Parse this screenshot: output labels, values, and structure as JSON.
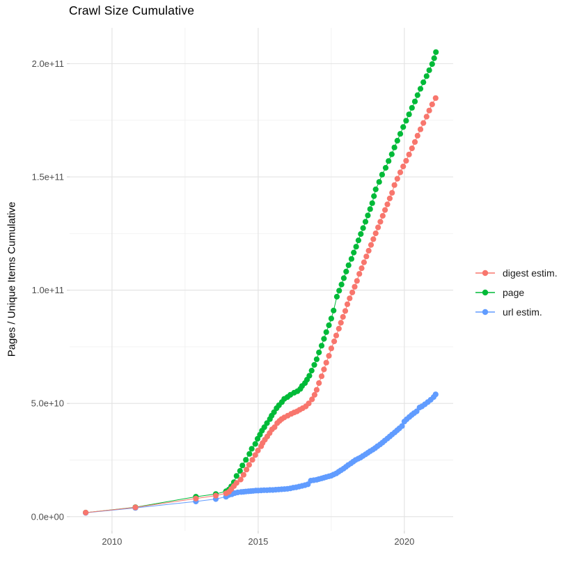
{
  "page": {
    "window_title": "Crawl Size Cumulative"
  },
  "colors": {
    "background": "#ffffff",
    "grid_major": "#e2e2e2",
    "grid_minor": "#ededed",
    "axis_tick": "#d0d0d0",
    "tick_label": "#4d4d4d",
    "title_text": "#000000",
    "digest": "#F8766D",
    "page_series": "#00BA38",
    "url": "#619CFF"
  },
  "chart_data": {
    "type": "scatter",
    "title": "Crawl Size Cumulative",
    "xlabel": "",
    "ylabel": "Pages / Unique Items Cumulative",
    "grid": true,
    "legend_position": "right",
    "xlim": [
      2008.55,
      2021.67
    ],
    "ylim_e9": [
      -6.2,
      215.8
    ],
    "x_ticks": {
      "major": [
        2010,
        2015,
        2020
      ],
      "minor": [
        2012.5,
        2017.5
      ],
      "labels": [
        "2010",
        "2015",
        "2020"
      ]
    },
    "y_ticks": {
      "major_e9": [
        0,
        50,
        100,
        150,
        200
      ],
      "minor_e9": [
        25,
        75,
        125,
        175
      ],
      "labels": [
        "0.0e+00",
        "5.0e+10",
        "1.0e+11",
        "1.5e+11",
        "2.0e+11"
      ]
    },
    "points_unit": 1000000000.0,
    "marker_radius": 4.1,
    "draw_order": [
      1,
      2,
      0
    ],
    "series": [
      {
        "name": "digest estim.",
        "color": "#F8766D",
        "points": [
          [
            2009.1,
            1.8
          ],
          [
            2010.8,
            4.1
          ],
          [
            2012.87,
            8.0
          ],
          [
            2013.55,
            9.3
          ],
          [
            2013.9,
            10.3
          ],
          [
            2014.0,
            11.0
          ],
          [
            2014.08,
            12.2
          ],
          [
            2014.17,
            13.5
          ],
          [
            2014.26,
            14.9
          ],
          [
            2014.4,
            16.4
          ],
          [
            2014.5,
            18.5
          ],
          [
            2014.6,
            20.8
          ],
          [
            2014.69,
            22.9
          ],
          [
            2014.8,
            25.1
          ],
          [
            2014.9,
            27.2
          ],
          [
            2014.99,
            29.2
          ],
          [
            2015.1,
            31.1
          ],
          [
            2015.15,
            32.5
          ],
          [
            2015.23,
            34.0
          ],
          [
            2015.31,
            35.4
          ],
          [
            2015.39,
            36.9
          ],
          [
            2015.47,
            38.5
          ],
          [
            2015.56,
            39.5
          ],
          [
            2015.65,
            41.3
          ],
          [
            2015.73,
            42.3
          ],
          [
            2015.8,
            43.1
          ],
          [
            2015.89,
            43.8
          ],
          [
            2016.01,
            44.6
          ],
          [
            2016.13,
            45.4
          ],
          [
            2016.23,
            46.0
          ],
          [
            2016.33,
            46.5
          ],
          [
            2016.42,
            47.2
          ],
          [
            2016.52,
            47.9
          ],
          [
            2016.63,
            48.7
          ],
          [
            2016.73,
            50.0
          ],
          [
            2016.84,
            51.8
          ],
          [
            2016.93,
            53.8
          ],
          [
            2017.0,
            56.0
          ],
          [
            2017.08,
            59.0
          ],
          [
            2017.17,
            62.0
          ],
          [
            2017.25,
            65.0
          ],
          [
            2017.33,
            68.0
          ],
          [
            2017.42,
            71.0
          ],
          [
            2017.5,
            74.3
          ],
          [
            2017.6,
            77.4
          ],
          [
            2017.67,
            80.0
          ],
          [
            2017.76,
            83.0
          ],
          [
            2017.83,
            85.6
          ],
          [
            2017.9,
            88.2
          ],
          [
            2017.98,
            90.8
          ],
          [
            2018.05,
            93.8
          ],
          [
            2018.13,
            96.4
          ],
          [
            2018.22,
            99.0
          ],
          [
            2018.3,
            101.5
          ],
          [
            2018.38,
            104.1
          ],
          [
            2018.46,
            107.2
          ],
          [
            2018.54,
            109.7
          ],
          [
            2018.62,
            112.3
          ],
          [
            2018.7,
            114.9
          ],
          [
            2018.78,
            117.4
          ],
          [
            2018.86,
            120.0
          ],
          [
            2018.94,
            122.5
          ],
          [
            2019.02,
            125.1
          ],
          [
            2019.1,
            127.7
          ],
          [
            2019.18,
            130.2
          ],
          [
            2019.26,
            132.8
          ],
          [
            2019.34,
            135.4
          ],
          [
            2019.42,
            137.9
          ],
          [
            2019.5,
            140.5
          ],
          [
            2019.58,
            143.0
          ],
          [
            2019.66,
            146.4
          ],
          [
            2019.76,
            149.2
          ],
          [
            2019.86,
            152.0
          ],
          [
            2019.96,
            154.6
          ],
          [
            2020.06,
            157.1
          ],
          [
            2020.16,
            159.9
          ],
          [
            2020.26,
            162.6
          ],
          [
            2020.36,
            165.4
          ],
          [
            2020.45,
            168.2
          ],
          [
            2020.55,
            171.0
          ],
          [
            2020.65,
            173.8
          ],
          [
            2020.76,
            176.6
          ],
          [
            2020.85,
            179.3
          ],
          [
            2020.95,
            182.0
          ],
          [
            2021.07,
            184.8
          ]
        ]
      },
      {
        "name": "page",
        "color": "#00BA38",
        "points": [
          [
            2009.1,
            1.8
          ],
          [
            2010.8,
            4.2
          ],
          [
            2012.87,
            8.8
          ],
          [
            2013.55,
            10.0
          ],
          [
            2013.9,
            11.2
          ],
          [
            2014.0,
            12.0
          ],
          [
            2014.08,
            13.4
          ],
          [
            2014.17,
            15.2
          ],
          [
            2014.26,
            18.0
          ],
          [
            2014.38,
            20.2
          ],
          [
            2014.46,
            22.6
          ],
          [
            2014.58,
            25.1
          ],
          [
            2014.7,
            27.7
          ],
          [
            2014.78,
            30.0
          ],
          [
            2014.9,
            32.1
          ],
          [
            2014.98,
            34.4
          ],
          [
            2015.06,
            36.2
          ],
          [
            2015.13,
            38.0
          ],
          [
            2015.21,
            39.5
          ],
          [
            2015.3,
            41.3
          ],
          [
            2015.4,
            43.1
          ],
          [
            2015.46,
            44.6
          ],
          [
            2015.54,
            46.1
          ],
          [
            2015.63,
            47.9
          ],
          [
            2015.71,
            49.2
          ],
          [
            2015.81,
            50.6
          ],
          [
            2015.89,
            52.0
          ],
          [
            2016.0,
            52.8
          ],
          [
            2016.1,
            53.8
          ],
          [
            2016.23,
            54.7
          ],
          [
            2016.34,
            55.4
          ],
          [
            2016.44,
            56.4
          ],
          [
            2016.5,
            57.7
          ],
          [
            2016.6,
            59.0
          ],
          [
            2016.67,
            60.5
          ],
          [
            2016.75,
            62.2
          ],
          [
            2016.83,
            64.5
          ],
          [
            2016.92,
            67.0
          ],
          [
            2017.0,
            69.5
          ],
          [
            2017.08,
            72.5
          ],
          [
            2017.17,
            75.5
          ],
          [
            2017.25,
            78.5
          ],
          [
            2017.33,
            81.5
          ],
          [
            2017.42,
            84.5
          ],
          [
            2017.5,
            87.5
          ],
          [
            2017.58,
            91.0
          ],
          [
            2017.69,
            97.1
          ],
          [
            2017.77,
            99.8
          ],
          [
            2017.85,
            102.5
          ],
          [
            2017.93,
            105.3
          ],
          [
            2018.01,
            108.2
          ],
          [
            2018.09,
            111.0
          ],
          [
            2018.19,
            113.8
          ],
          [
            2018.27,
            116.6
          ],
          [
            2018.35,
            119.2
          ],
          [
            2018.43,
            122.0
          ],
          [
            2018.51,
            124.8
          ],
          [
            2018.59,
            127.4
          ],
          [
            2018.67,
            130.2
          ],
          [
            2018.75,
            133.0
          ],
          [
            2018.83,
            135.8
          ],
          [
            2018.9,
            138.4
          ],
          [
            2018.96,
            141.5
          ],
          [
            2019.02,
            144.5
          ],
          [
            2019.14,
            147.8
          ],
          [
            2019.24,
            151.0
          ],
          [
            2019.36,
            154.0
          ],
          [
            2019.46,
            157.0
          ],
          [
            2019.57,
            160.0
          ],
          [
            2019.66,
            163.0
          ],
          [
            2019.76,
            166.0
          ],
          [
            2019.86,
            169.0
          ],
          [
            2019.96,
            172.0
          ],
          [
            2020.06,
            174.8
          ],
          [
            2020.16,
            177.6
          ],
          [
            2020.26,
            180.5
          ],
          [
            2020.36,
            183.3
          ],
          [
            2020.45,
            186.1
          ],
          [
            2020.55,
            188.9
          ],
          [
            2020.65,
            191.8
          ],
          [
            2020.76,
            194.5
          ],
          [
            2020.85,
            197.1
          ],
          [
            2020.95,
            199.8
          ],
          [
            2021.02,
            202.4
          ],
          [
            2021.08,
            205.1
          ]
        ]
      },
      {
        "name": "url estim.",
        "color": "#619CFF",
        "points": [
          [
            2009.1,
            1.7
          ],
          [
            2010.8,
            3.9
          ],
          [
            2012.87,
            6.7
          ],
          [
            2013.55,
            7.8
          ],
          [
            2013.9,
            8.8
          ],
          [
            2014.0,
            9.6
          ],
          [
            2014.1,
            9.9
          ],
          [
            2014.2,
            10.4
          ],
          [
            2014.3,
            10.7
          ],
          [
            2014.42,
            10.9
          ],
          [
            2014.5,
            11.0
          ],
          [
            2014.58,
            11.1
          ],
          [
            2014.67,
            11.2
          ],
          [
            2014.75,
            11.3
          ],
          [
            2014.83,
            11.4
          ],
          [
            2014.92,
            11.5
          ],
          [
            2015.0,
            11.5
          ],
          [
            2015.1,
            11.6
          ],
          [
            2015.2,
            11.7
          ],
          [
            2015.3,
            11.7
          ],
          [
            2015.4,
            11.8
          ],
          [
            2015.5,
            11.8
          ],
          [
            2015.6,
            11.9
          ],
          [
            2015.7,
            12.0
          ],
          [
            2015.8,
            12.1
          ],
          [
            2015.9,
            12.2
          ],
          [
            2016.0,
            12.3
          ],
          [
            2016.1,
            12.5
          ],
          [
            2016.2,
            12.8
          ],
          [
            2016.3,
            13.0
          ],
          [
            2016.4,
            13.3
          ],
          [
            2016.5,
            13.6
          ],
          [
            2016.6,
            13.9
          ],
          [
            2016.7,
            14.3
          ],
          [
            2016.8,
            15.9
          ],
          [
            2016.9,
            16.1
          ],
          [
            2017.0,
            16.3
          ],
          [
            2017.08,
            16.6
          ],
          [
            2017.17,
            16.9
          ],
          [
            2017.25,
            17.2
          ],
          [
            2017.33,
            17.5
          ],
          [
            2017.42,
            17.8
          ],
          [
            2017.5,
            18.1
          ],
          [
            2017.58,
            18.6
          ],
          [
            2017.67,
            19.1
          ],
          [
            2017.75,
            19.8
          ],
          [
            2017.83,
            20.5
          ],
          [
            2017.92,
            21.2
          ],
          [
            2018.0,
            22.0
          ],
          [
            2018.08,
            22.8
          ],
          [
            2018.17,
            23.5
          ],
          [
            2018.25,
            24.3
          ],
          [
            2018.33,
            25.0
          ],
          [
            2018.42,
            25.6
          ],
          [
            2018.5,
            26.1
          ],
          [
            2018.58,
            26.8
          ],
          [
            2018.67,
            27.5
          ],
          [
            2018.75,
            28.2
          ],
          [
            2018.83,
            28.9
          ],
          [
            2018.92,
            29.6
          ],
          [
            2019.0,
            30.3
          ],
          [
            2019.08,
            31.1
          ],
          [
            2019.17,
            31.9
          ],
          [
            2019.25,
            32.7
          ],
          [
            2019.33,
            33.6
          ],
          [
            2019.42,
            34.5
          ],
          [
            2019.5,
            35.4
          ],
          [
            2019.58,
            36.3
          ],
          [
            2019.67,
            37.2
          ],
          [
            2019.75,
            38.1
          ],
          [
            2019.83,
            39.0
          ],
          [
            2019.92,
            40.0
          ],
          [
            2020.0,
            42.0
          ],
          [
            2020.08,
            43.0
          ],
          [
            2020.17,
            44.0
          ],
          [
            2020.25,
            44.9
          ],
          [
            2020.33,
            45.7
          ],
          [
            2020.42,
            46.5
          ],
          [
            2020.52,
            48.2
          ],
          [
            2020.6,
            48.7
          ],
          [
            2020.7,
            49.6
          ],
          [
            2020.8,
            50.6
          ],
          [
            2020.9,
            51.6
          ],
          [
            2021.0,
            52.8
          ],
          [
            2021.07,
            54.0
          ]
        ]
      }
    ]
  }
}
